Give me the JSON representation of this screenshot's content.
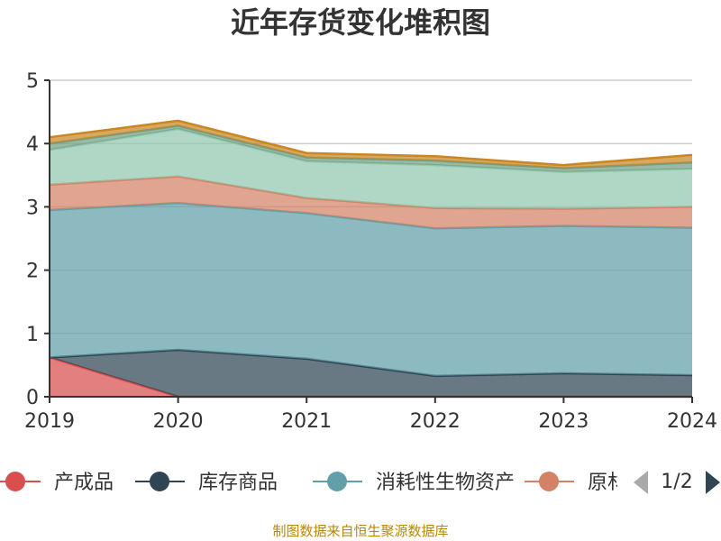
{
  "chart_data": {
    "type": "area",
    "stacked": true,
    "title": "近年存货变化堆积图",
    "ylabel": "",
    "x": [
      "2019",
      "2020",
      "2021",
      "2022",
      "2023",
      "2024"
    ],
    "ylim": [
      0,
      5
    ],
    "yticks": [
      "0",
      "1",
      "2",
      "3",
      "4",
      "5"
    ],
    "grid": true,
    "series": [
      {
        "name": "产成品",
        "color": "#d94e4e",
        "values": [
          0.62,
          0.0,
          0.0,
          0.0,
          0.0,
          0.0
        ]
      },
      {
        "name": "库存商品",
        "color": "#2f4554",
        "values": [
          0.0,
          0.74,
          0.6,
          0.33,
          0.37,
          0.34
        ]
      },
      {
        "name": "消耗性生物资产",
        "color": "#61a0a8",
        "values": [
          2.33,
          2.32,
          2.3,
          2.33,
          2.33,
          2.33
        ]
      },
      {
        "name": "原材料",
        "color": "#d48265",
        "values": [
          0.4,
          0.42,
          0.24,
          0.32,
          0.27,
          0.33
        ]
      },
      {
        "name": "",
        "color": "#91c7ae",
        "values": [
          0.55,
          0.75,
          0.58,
          0.68,
          0.58,
          0.6
        ]
      },
      {
        "name": "",
        "color": "#749f83",
        "values": [
          0.1,
          0.05,
          0.06,
          0.07,
          0.06,
          0.1
        ]
      },
      {
        "name": "",
        "color": "#ca8622",
        "values": [
          0.1,
          0.08,
          0.07,
          0.07,
          0.05,
          0.12
        ]
      }
    ],
    "legend": {
      "position": "bottom",
      "visible_items": [
        "产成品",
        "库存商品",
        "消耗性生物资产",
        "原材"
      ],
      "page_label": "1/2"
    },
    "source": "制图数据来自恒生聚源数据库"
  }
}
